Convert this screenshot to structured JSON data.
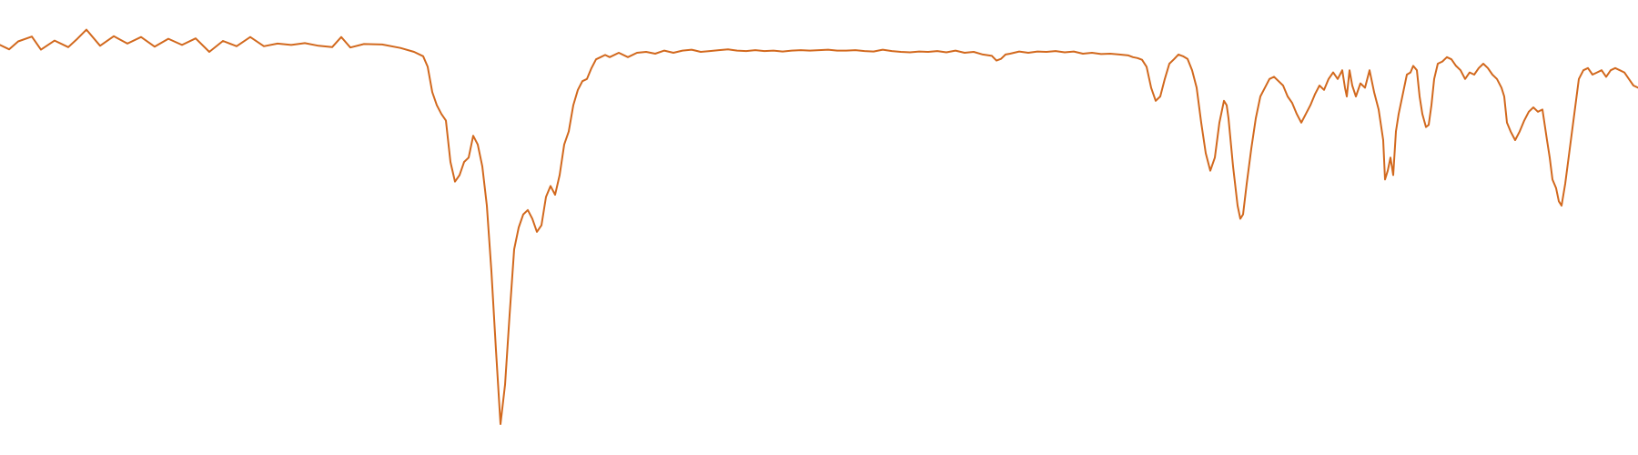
{
  "chart_data": {
    "type": "line",
    "title": "",
    "xlabel": "",
    "ylabel": "",
    "axes_visible": false,
    "grid": false,
    "legend": "none",
    "line_color": "#d2691e",
    "x_range": [
      0,
      1800
    ],
    "y_range": [
      0,
      100
    ],
    "series": [
      {
        "points": [
          [
            0,
            91.8
          ],
          [
            10,
            90.8
          ],
          [
            20,
            92.6
          ],
          [
            35,
            93.7
          ],
          [
            45,
            90.7
          ],
          [
            60,
            92.8
          ],
          [
            75,
            91.3
          ],
          [
            85,
            93.2
          ],
          [
            95,
            95.3
          ],
          [
            110,
            91.6
          ],
          [
            125,
            93.8
          ],
          [
            140,
            92.1
          ],
          [
            155,
            93.6
          ],
          [
            170,
            91.4
          ],
          [
            185,
            93.2
          ],
          [
            200,
            91.8
          ],
          [
            215,
            93.3
          ],
          [
            230,
            90.2
          ],
          [
            245,
            92.7
          ],
          [
            260,
            91.5
          ],
          [
            275,
            93.6
          ],
          [
            290,
            91.5
          ],
          [
            305,
            92.1
          ],
          [
            320,
            91.8
          ],
          [
            335,
            92.2
          ],
          [
            350,
            91.6
          ],
          [
            365,
            91.3
          ],
          [
            375,
            93.6
          ],
          [
            385,
            91.2
          ],
          [
            400,
            92.0
          ],
          [
            420,
            91.9
          ],
          [
            440,
            91.1
          ],
          [
            455,
            90.2
          ],
          [
            465,
            89.2
          ],
          [
            470,
            86.8
          ],
          [
            475,
            81.0
          ],
          [
            480,
            78.0
          ],
          [
            485,
            76.0
          ],
          [
            490,
            74.5
          ],
          [
            495,
            65.0
          ],
          [
            500,
            60.5
          ],
          [
            505,
            62.0
          ],
          [
            510,
            65.0
          ],
          [
            515,
            66.0
          ],
          [
            520,
            71.0
          ],
          [
            525,
            69.0
          ],
          [
            530,
            64.0
          ],
          [
            535,
            55.0
          ],
          [
            540,
            40.0
          ],
          [
            545,
            22.0
          ],
          [
            550,
            5.0
          ],
          [
            555,
            14.0
          ],
          [
            560,
            30.0
          ],
          [
            565,
            45.0
          ],
          [
            570,
            50.0
          ],
          [
            575,
            53.0
          ],
          [
            580,
            54.0
          ],
          [
            585,
            52.0
          ],
          [
            590,
            49.0
          ],
          [
            595,
            50.5
          ],
          [
            600,
            57.0
          ],
          [
            605,
            59.5
          ],
          [
            610,
            57.5
          ],
          [
            615,
            62.0
          ],
          [
            620,
            69.0
          ],
          [
            625,
            72.0
          ],
          [
            630,
            78.0
          ],
          [
            635,
            81.5
          ],
          [
            640,
            83.5
          ],
          [
            645,
            84.0
          ],
          [
            650,
            86.5
          ],
          [
            655,
            88.5
          ],
          [
            660,
            89.0
          ],
          [
            665,
            89.5
          ],
          [
            670,
            89.0
          ],
          [
            680,
            90.0
          ],
          [
            690,
            89.0
          ],
          [
            700,
            90.0
          ],
          [
            710,
            90.2
          ],
          [
            720,
            89.8
          ],
          [
            730,
            90.5
          ],
          [
            740,
            90.0
          ],
          [
            750,
            90.5
          ],
          [
            760,
            90.7
          ],
          [
            770,
            90.2
          ],
          [
            780,
            90.4
          ],
          [
            790,
            90.6
          ],
          [
            800,
            90.8
          ],
          [
            810,
            90.5
          ],
          [
            820,
            90.4
          ],
          [
            830,
            90.6
          ],
          [
            840,
            90.4
          ],
          [
            850,
            90.5
          ],
          [
            860,
            90.3
          ],
          [
            870,
            90.5
          ],
          [
            880,
            90.6
          ],
          [
            890,
            90.5
          ],
          [
            900,
            90.6
          ],
          [
            910,
            90.7
          ],
          [
            920,
            90.5
          ],
          [
            930,
            90.5
          ],
          [
            940,
            90.6
          ],
          [
            950,
            90.4
          ],
          [
            960,
            90.3
          ],
          [
            970,
            90.7
          ],
          [
            980,
            90.4
          ],
          [
            990,
            90.2
          ],
          [
            1000,
            90.1
          ],
          [
            1010,
            90.3
          ],
          [
            1020,
            90.2
          ],
          [
            1030,
            90.4
          ],
          [
            1040,
            90.1
          ],
          [
            1050,
            90.5
          ],
          [
            1060,
            90.0
          ],
          [
            1070,
            90.2
          ],
          [
            1080,
            89.6
          ],
          [
            1090,
            89.3
          ],
          [
            1095,
            88.2
          ],
          [
            1100,
            88.6
          ],
          [
            1105,
            89.6
          ],
          [
            1110,
            89.8
          ],
          [
            1120,
            90.3
          ],
          [
            1130,
            90.0
          ],
          [
            1140,
            90.3
          ],
          [
            1150,
            90.2
          ],
          [
            1160,
            90.4
          ],
          [
            1170,
            90.1
          ],
          [
            1180,
            90.3
          ],
          [
            1190,
            89.8
          ],
          [
            1200,
            90.0
          ],
          [
            1210,
            89.7
          ],
          [
            1220,
            89.8
          ],
          [
            1230,
            89.6
          ],
          [
            1240,
            89.4
          ],
          [
            1245,
            89.0
          ],
          [
            1250,
            88.8
          ],
          [
            1255,
            88.4
          ],
          [
            1260,
            86.8
          ],
          [
            1265,
            82.0
          ],
          [
            1270,
            79.0
          ],
          [
            1275,
            80.0
          ],
          [
            1280,
            84.0
          ],
          [
            1285,
            87.5
          ],
          [
            1290,
            88.5
          ],
          [
            1295,
            89.6
          ],
          [
            1300,
            89.2
          ],
          [
            1305,
            88.6
          ],
          [
            1310,
            86.0
          ],
          [
            1315,
            82.0
          ],
          [
            1320,
            74.0
          ],
          [
            1325,
            67.0
          ],
          [
            1330,
            63.0
          ],
          [
            1335,
            66.0
          ],
          [
            1340,
            74.0
          ],
          [
            1345,
            79.0
          ],
          [
            1348,
            78.0
          ],
          [
            1350,
            75.0
          ],
          [
            1355,
            64.0
          ],
          [
            1360,
            55.0
          ],
          [
            1363,
            52.0
          ],
          [
            1366,
            53.0
          ],
          [
            1370,
            60.0
          ],
          [
            1375,
            68.0
          ],
          [
            1380,
            75.0
          ],
          [
            1385,
            80.0
          ],
          [
            1390,
            82.0
          ],
          [
            1395,
            84.0
          ],
          [
            1400,
            84.5
          ],
          [
            1405,
            83.5
          ],
          [
            1410,
            82.5
          ],
          [
            1415,
            80.0
          ],
          [
            1420,
            78.5
          ],
          [
            1425,
            76.0
          ],
          [
            1430,
            74.0
          ],
          [
            1435,
            76.0
          ],
          [
            1440,
            78.0
          ],
          [
            1445,
            80.5
          ],
          [
            1450,
            82.5
          ],
          [
            1455,
            81.5
          ],
          [
            1460,
            84.0
          ],
          [
            1465,
            85.5
          ],
          [
            1470,
            84.0
          ],
          [
            1475,
            86.0
          ],
          [
            1478,
            82.0
          ],
          [
            1480,
            80.0
          ],
          [
            1483,
            86.0
          ],
          [
            1486,
            82.5
          ],
          [
            1490,
            80.0
          ],
          [
            1495,
            83.0
          ],
          [
            1500,
            82.0
          ],
          [
            1505,
            86.0
          ],
          [
            1510,
            81.0
          ],
          [
            1515,
            77.0
          ],
          [
            1520,
            70.0
          ],
          [
            1522,
            61.0
          ],
          [
            1525,
            63.0
          ],
          [
            1528,
            66.0
          ],
          [
            1531,
            62.0
          ],
          [
            1534,
            72.0
          ],
          [
            1537,
            76.0
          ],
          [
            1540,
            79.0
          ],
          [
            1543,
            82.0
          ],
          [
            1546,
            85.0
          ],
          [
            1550,
            85.5
          ],
          [
            1553,
            87.0
          ],
          [
            1557,
            86.0
          ],
          [
            1560,
            80.0
          ],
          [
            1563,
            76.0
          ],
          [
            1567,
            73.0
          ],
          [
            1570,
            73.5
          ],
          [
            1573,
            78.0
          ],
          [
            1576,
            84.0
          ],
          [
            1580,
            87.5
          ],
          [
            1585,
            88.0
          ],
          [
            1590,
            89.0
          ],
          [
            1595,
            88.5
          ],
          [
            1600,
            87.0
          ],
          [
            1605,
            86.0
          ],
          [
            1610,
            84.0
          ],
          [
            1615,
            85.5
          ],
          [
            1620,
            85.0
          ],
          [
            1625,
            86.5
          ],
          [
            1630,
            87.5
          ],
          [
            1635,
            86.5
          ],
          [
            1640,
            85.0
          ],
          [
            1645,
            84.0
          ],
          [
            1650,
            82.0
          ],
          [
            1653,
            80.0
          ],
          [
            1656,
            74.0
          ],
          [
            1660,
            72.0
          ],
          [
            1665,
            70.0
          ],
          [
            1670,
            72.0
          ],
          [
            1675,
            74.5
          ],
          [
            1680,
            76.5
          ],
          [
            1685,
            77.5
          ],
          [
            1690,
            76.5
          ],
          [
            1695,
            77.0
          ],
          [
            1700,
            70.0
          ],
          [
            1703,
            66.0
          ],
          [
            1706,
            61.0
          ],
          [
            1710,
            59.0
          ],
          [
            1713,
            56.0
          ],
          [
            1716,
            55.0
          ],
          [
            1720,
            60.0
          ],
          [
            1725,
            68.0
          ],
          [
            1730,
            76.0
          ],
          [
            1735,
            84.0
          ],
          [
            1740,
            86.0
          ],
          [
            1745,
            86.5
          ],
          [
            1750,
            85.0
          ],
          [
            1755,
            85.5
          ],
          [
            1760,
            86.0
          ],
          [
            1765,
            84.5
          ],
          [
            1770,
            86.0
          ],
          [
            1775,
            86.5
          ],
          [
            1780,
            86.0
          ],
          [
            1785,
            85.5
          ],
          [
            1790,
            84.0
          ],
          [
            1795,
            82.5
          ],
          [
            1800,
            82.0
          ]
        ]
      }
    ]
  }
}
